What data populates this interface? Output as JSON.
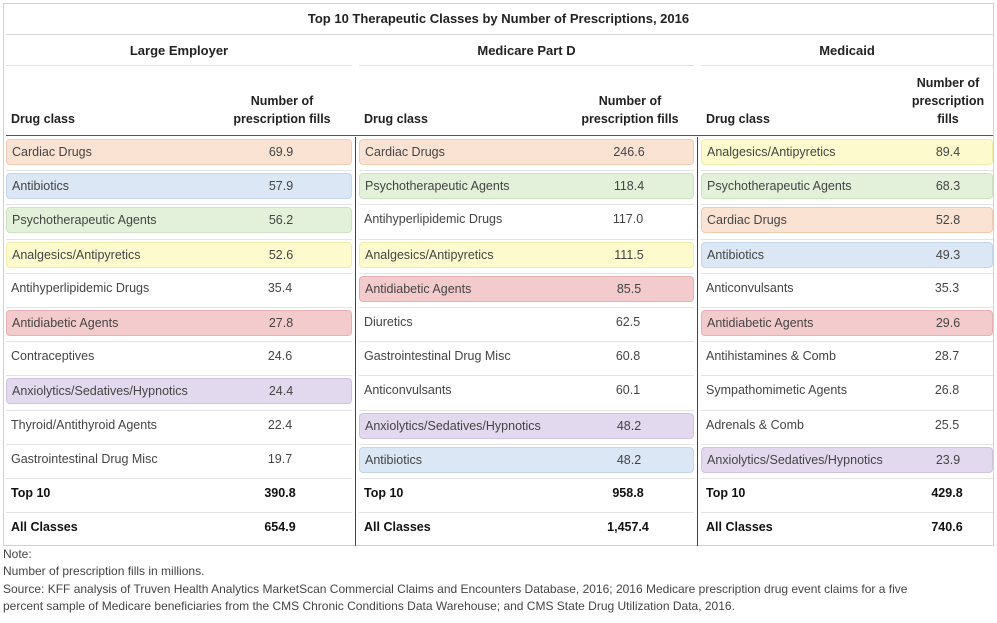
{
  "chart_data": {
    "type": "table",
    "title": "Top 10 Therapeutic Classes by Number of Prescriptions, 2016",
    "column_headers": {
      "drug_class": "Drug class",
      "fills": "Number of prescription fills"
    },
    "groups": [
      {
        "name": "Large Employer",
        "rows": [
          {
            "label": "Cardiac Drugs",
            "value": "69.9",
            "category": "cardiac"
          },
          {
            "label": "Antibiotics",
            "value": "57.9",
            "category": "antibiotics"
          },
          {
            "label": "Psychotherapeutic Agents",
            "value": "56.2",
            "category": "psycho"
          },
          {
            "label": "Analgesics/Antipyretics",
            "value": "52.6",
            "category": "analgesics"
          },
          {
            "label": "Antihyperlipidemic Drugs",
            "value": "35.4",
            "category": "none"
          },
          {
            "label": "Antidiabetic Agents",
            "value": "27.8",
            "category": "antidiabetic"
          },
          {
            "label": "Contraceptives",
            "value": "24.6",
            "category": "none"
          },
          {
            "label": "Anxiolytics/Sedatives/Hypnotics",
            "value": "24.4",
            "category": "anxiolytics"
          },
          {
            "label": "Thyroid/Antithyroid Agents",
            "value": "22.4",
            "category": "none"
          },
          {
            "label": "Gastrointestinal Drug Misc",
            "value": "19.7",
            "category": "none"
          }
        ],
        "top10": "390.8",
        "all_classes": "654.9"
      },
      {
        "name": "Medicare Part D",
        "rows": [
          {
            "label": "Cardiac Drugs",
            "value": "246.6",
            "category": "cardiac"
          },
          {
            "label": "Psychotherapeutic Agents",
            "value": "118.4",
            "category": "psycho"
          },
          {
            "label": "Antihyperlipidemic Drugs",
            "value": "117.0",
            "category": "none"
          },
          {
            "label": "Analgesics/Antipyretics",
            "value": "111.5",
            "category": "analgesics"
          },
          {
            "label": "Antidiabetic Agents",
            "value": "85.5",
            "category": "antidiabetic"
          },
          {
            "label": "Diuretics",
            "value": "62.5",
            "category": "none"
          },
          {
            "label": "Gastrointestinal Drug Misc",
            "value": "60.8",
            "category": "none"
          },
          {
            "label": "Anticonvulsants",
            "value": "60.1",
            "category": "none"
          },
          {
            "label": "Anxiolytics/Sedatives/Hypnotics",
            "value": "48.2",
            "category": "anxiolytics"
          },
          {
            "label": "Antibiotics",
            "value": "48.2",
            "category": "antibiotics"
          }
        ],
        "top10": "958.8",
        "all_classes": "1,457.4"
      },
      {
        "name": "Medicaid",
        "rows": [
          {
            "label": "Analgesics/Antipyretics",
            "value": "89.4",
            "category": "analgesics"
          },
          {
            "label": "Psychotherapeutic Agents",
            "value": "68.3",
            "category": "psycho"
          },
          {
            "label": "Cardiac Drugs",
            "value": "52.8",
            "category": "cardiac"
          },
          {
            "label": "Antibiotics",
            "value": "49.3",
            "category": "antibiotics"
          },
          {
            "label": "Anticonvulsants",
            "value": "35.3",
            "category": "none"
          },
          {
            "label": "Antidiabetic Agents",
            "value": "29.6",
            "category": "antidiabetic"
          },
          {
            "label": "Antihistamines & Comb",
            "value": "28.7",
            "category": "none"
          },
          {
            "label": "Sympathomimetic Agents",
            "value": "26.8",
            "category": "none"
          },
          {
            "label": "Adrenals & Comb",
            "value": "25.5",
            "category": "none"
          },
          {
            "label": "Anxiolytics/Sedatives/Hypnotics",
            "value": "23.9",
            "category": "anxiolytics"
          }
        ],
        "top10": "429.8",
        "all_classes": "740.6"
      }
    ],
    "total_labels": {
      "top10": "Top 10",
      "all": "All Classes"
    }
  },
  "category_colors": {
    "cardiac": {
      "fill": "#fbe3d4",
      "border": "#f3cbb3"
    },
    "antibiotics": {
      "fill": "#dbe7f4",
      "border": "#c4d7ec"
    },
    "psycho": {
      "fill": "#e3f1da",
      "border": "#cde3c0"
    },
    "analgesics": {
      "fill": "#fdfbcd",
      "border": "#f0ecaa"
    },
    "antidiabetic": {
      "fill": "#f4cbcc",
      "border": "#e8b0b2"
    },
    "anxiolytics": {
      "fill": "#e3d9ee",
      "border": "#d0c2e3"
    }
  },
  "notes": {
    "line1": "Note:",
    "line2": "Number of prescription fills in millions.",
    "line3": "Source: KFF analysis of Truven Health Analytics MarketScan Commercial Claims and Encounters Database, 2016; 2016 Medicare prescription drug event claims for a five",
    "line4": "percent sample of Medicare beneficiaries from the CMS Chronic Conditions Data Warehouse; and CMS State Drug Utilization Data, 2016."
  }
}
